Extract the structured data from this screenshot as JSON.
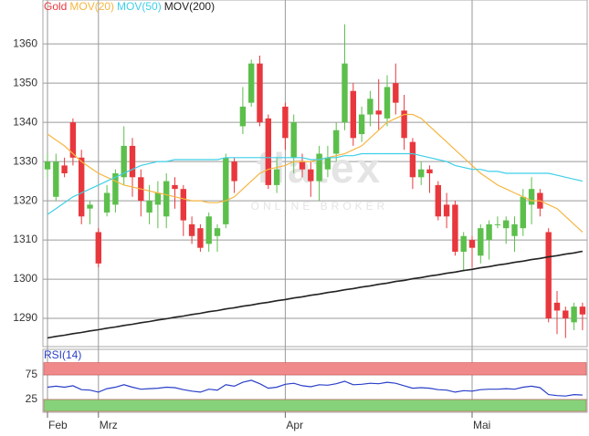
{
  "chart_data": [
    {
      "type": "candlestick",
      "categories": [
        "Feb",
        null,
        null,
        null,
        null,
        null,
        "Mrz",
        null,
        null,
        null,
        null,
        null,
        null,
        null,
        null,
        null,
        null,
        null,
        null,
        null,
        null,
        null,
        null,
        null,
        null,
        null,
        null,
        null,
        "Apr",
        null,
        null,
        null,
        null,
        null,
        null,
        null,
        null,
        null,
        null,
        null,
        null,
        null,
        null,
        null,
        null,
        null,
        null,
        null,
        null,
        null,
        "Mai",
        null,
        null,
        null,
        null,
        null,
        null,
        null,
        null,
        null,
        null,
        null,
        null,
        null
      ],
      "series": [
        {
          "name": "Gold",
          "color": "#e8383d",
          "open": [
            1328,
            1321,
            1329,
            1340,
            1331,
            1318,
            1312,
            1317,
            1319,
            1326,
            1334,
            1326,
            1317,
            1319,
            1316,
            1324,
            1323,
            1314,
            1313,
            1309,
            1311,
            1314,
            1330,
            1339,
            1345,
            1355,
            1341,
            1324,
            1344,
            1331,
            1330,
            1328,
            1325,
            1328,
            1332,
            1340,
            1348,
            1337,
            1342,
            1343,
            1341,
            1350,
            1343,
            1335,
            1326,
            1328,
            1324,
            1319,
            1319,
            1307,
            1310,
            1306,
            1310,
            1314,
            1313,
            1311,
            1313,
            1319,
            1322,
            1312,
            1294,
            1292,
            1289,
            1293
          ],
          "high": [
            1332,
            1332,
            1331,
            1341,
            1333,
            1320,
            1313,
            1324,
            1328,
            1339,
            1336,
            1328,
            1324,
            1325,
            1327,
            1326,
            1324,
            1316,
            1314,
            1317,
            1314,
            1332,
            1331,
            1349,
            1356,
            1357,
            1342,
            1331,
            1345,
            1342,
            1332,
            1330,
            1334,
            1334,
            1340,
            1365,
            1350,
            1344,
            1348,
            1351,
            1352,
            1355,
            1347,
            1336,
            1330,
            1329,
            1325,
            1322,
            1320,
            1312,
            1311,
            1314,
            1315,
            1316,
            1316,
            1316,
            1323,
            1326,
            1323,
            1313,
            1297,
            1293,
            1294,
            1294
          ],
          "low": [
            1326,
            1320,
            1326,
            1329,
            1314,
            1314,
            1303,
            1316,
            1317,
            1324,
            1321,
            1316,
            1314,
            1313,
            1313,
            1318,
            1311,
            1309,
            1307,
            1307,
            1307,
            1313,
            1322,
            1337,
            1344,
            1339,
            1323,
            1322,
            1333,
            1327,
            1326,
            1321,
            1320,
            1326,
            1330,
            1338,
            1334,
            1335,
            1339,
            1338,
            1339,
            1342,
            1333,
            1323,
            1324,
            1322,
            1315,
            1313,
            1306,
            1302,
            1303,
            1304,
            1305,
            1313,
            1309,
            1307,
            1311,
            1314,
            1316,
            1289,
            1286,
            1285,
            1287,
            1287
          ],
          "close": [
            1330,
            1330,
            1327,
            1331,
            1316,
            1319,
            1304,
            1322,
            1327,
            1334,
            1326,
            1320,
            1320,
            1322,
            1325,
            1323,
            1315,
            1311,
            1308,
            1316,
            1313,
            1331,
            1325,
            1344,
            1355,
            1340,
            1324,
            1328,
            1336,
            1340,
            1328,
            1325,
            1332,
            1331,
            1338,
            1355,
            1336,
            1342,
            1346,
            1342,
            1349,
            1345,
            1336,
            1326,
            1328,
            1327,
            1316,
            1316,
            1307,
            1311,
            1308,
            1313,
            1314,
            1314,
            1315,
            1314,
            1321,
            1323,
            1318,
            1290,
            1292,
            1290,
            1293,
            1291
          ]
        }
      ],
      "up_color": "#5cbf4c",
      "down_color": "#e8383d",
      "lines": [
        {
          "name": "MOV(20)",
          "color": "#f5b642",
          "values": [
            1337,
            1335.5,
            1334,
            1332,
            1330,
            1328.5,
            1327,
            1326,
            1325,
            1324,
            1323.5,
            1323,
            1322.5,
            1322,
            1321.5,
            1321,
            1320.5,
            1320,
            1320,
            1319.5,
            1319.5,
            1320,
            1321,
            1323,
            1325,
            1327,
            1328,
            1328.5,
            1329,
            1330,
            1330,
            1330,
            1330.5,
            1331,
            1331.5,
            1332,
            1333,
            1334,
            1336,
            1338,
            1340,
            1341,
            1342,
            1342,
            1341,
            1339,
            1337,
            1335,
            1333,
            1331,
            1329,
            1327,
            1325.5,
            1324,
            1323,
            1322,
            1321,
            1320,
            1320,
            1319,
            1318,
            1316,
            1314,
            1312
          ]
        },
        {
          "name": "MOV(50)",
          "color": "#3fcfe8",
          "values": [
            1316.5,
            1318,
            1319.5,
            1321,
            1322,
            1323,
            1324,
            1325,
            1326,
            1327,
            1328,
            1329,
            1329.5,
            1330,
            1330,
            1330.5,
            1330.5,
            1330.5,
            1330.5,
            1330.5,
            1330.5,
            1331,
            1331,
            1331,
            1331,
            1331,
            1331,
            1331,
            1331,
            1331,
            1331,
            1330.5,
            1330.5,
            1331,
            1331,
            1331.5,
            1331.5,
            1332,
            1332,
            1332,
            1332,
            1332,
            1332,
            1332,
            1331.5,
            1331,
            1330.5,
            1330,
            1329,
            1328.5,
            1328,
            1328,
            1327.5,
            1327.5,
            1327,
            1327,
            1327,
            1327,
            1327,
            1327,
            1326.5,
            1326,
            1325.5,
            1325
          ]
        },
        {
          "name": "MOV(200)",
          "color": "#222222",
          "values": [
            1285.0,
            1285.4,
            1285.7,
            1286.1,
            1286.4,
            1286.8,
            1287.1,
            1287.5,
            1287.8,
            1288.2,
            1288.5,
            1288.9,
            1289.2,
            1289.6,
            1289.9,
            1290.3,
            1290.6,
            1291.0,
            1291.3,
            1291.7,
            1292.0,
            1292.4,
            1292.7,
            1293.1,
            1293.4,
            1293.8,
            1294.1,
            1294.5,
            1294.8,
            1295.2,
            1295.5,
            1295.9,
            1296.2,
            1296.6,
            1296.9,
            1297.3,
            1297.6,
            1298.0,
            1298.3,
            1298.7,
            1299.0,
            1299.4,
            1299.7,
            1300.1,
            1300.4,
            1300.8,
            1301.1,
            1301.5,
            1301.8,
            1302.2,
            1302.5,
            1302.9,
            1303.2,
            1303.6,
            1303.9,
            1304.3,
            1304.6,
            1305.0,
            1305.3,
            1305.7,
            1306.0,
            1306.4,
            1306.7,
            1307.1
          ]
        }
      ],
      "ylim": [
        1282.8,
        1371.2
      ],
      "yticks": [
        1290,
        1300,
        1310,
        1320,
        1330,
        1340,
        1350,
        1360
      ],
      "grid": true,
      "watermark": {
        "logo": "flatex",
        "tagline": "ONLINE BROKER"
      }
    },
    {
      "type": "line",
      "series": [
        {
          "name": "RSI(14)",
          "color": "#2a3fc8",
          "values": [
            50,
            52,
            50,
            53,
            45,
            44,
            40,
            47,
            50,
            55,
            50,
            46,
            47,
            48,
            50,
            49,
            45,
            42,
            40,
            46,
            44,
            55,
            52,
            60,
            64,
            57,
            48,
            50,
            56,
            58,
            53,
            51,
            55,
            54,
            57,
            62,
            55,
            56,
            58,
            57,
            60,
            58,
            53,
            48,
            49,
            48,
            45,
            44,
            40,
            43,
            42,
            45,
            46,
            46,
            47,
            46,
            50,
            52,
            49,
            35,
            33,
            32,
            35,
            34
          ]
        }
      ],
      "bands": [
        {
          "from": 75,
          "to": 100,
          "color": "#f08a8a"
        },
        {
          "from": 0,
          "to": 25,
          "color": "#86d27a"
        }
      ],
      "ylim": [
        0,
        100
      ],
      "yticks": [
        25,
        75
      ],
      "grid": true
    }
  ]
}
